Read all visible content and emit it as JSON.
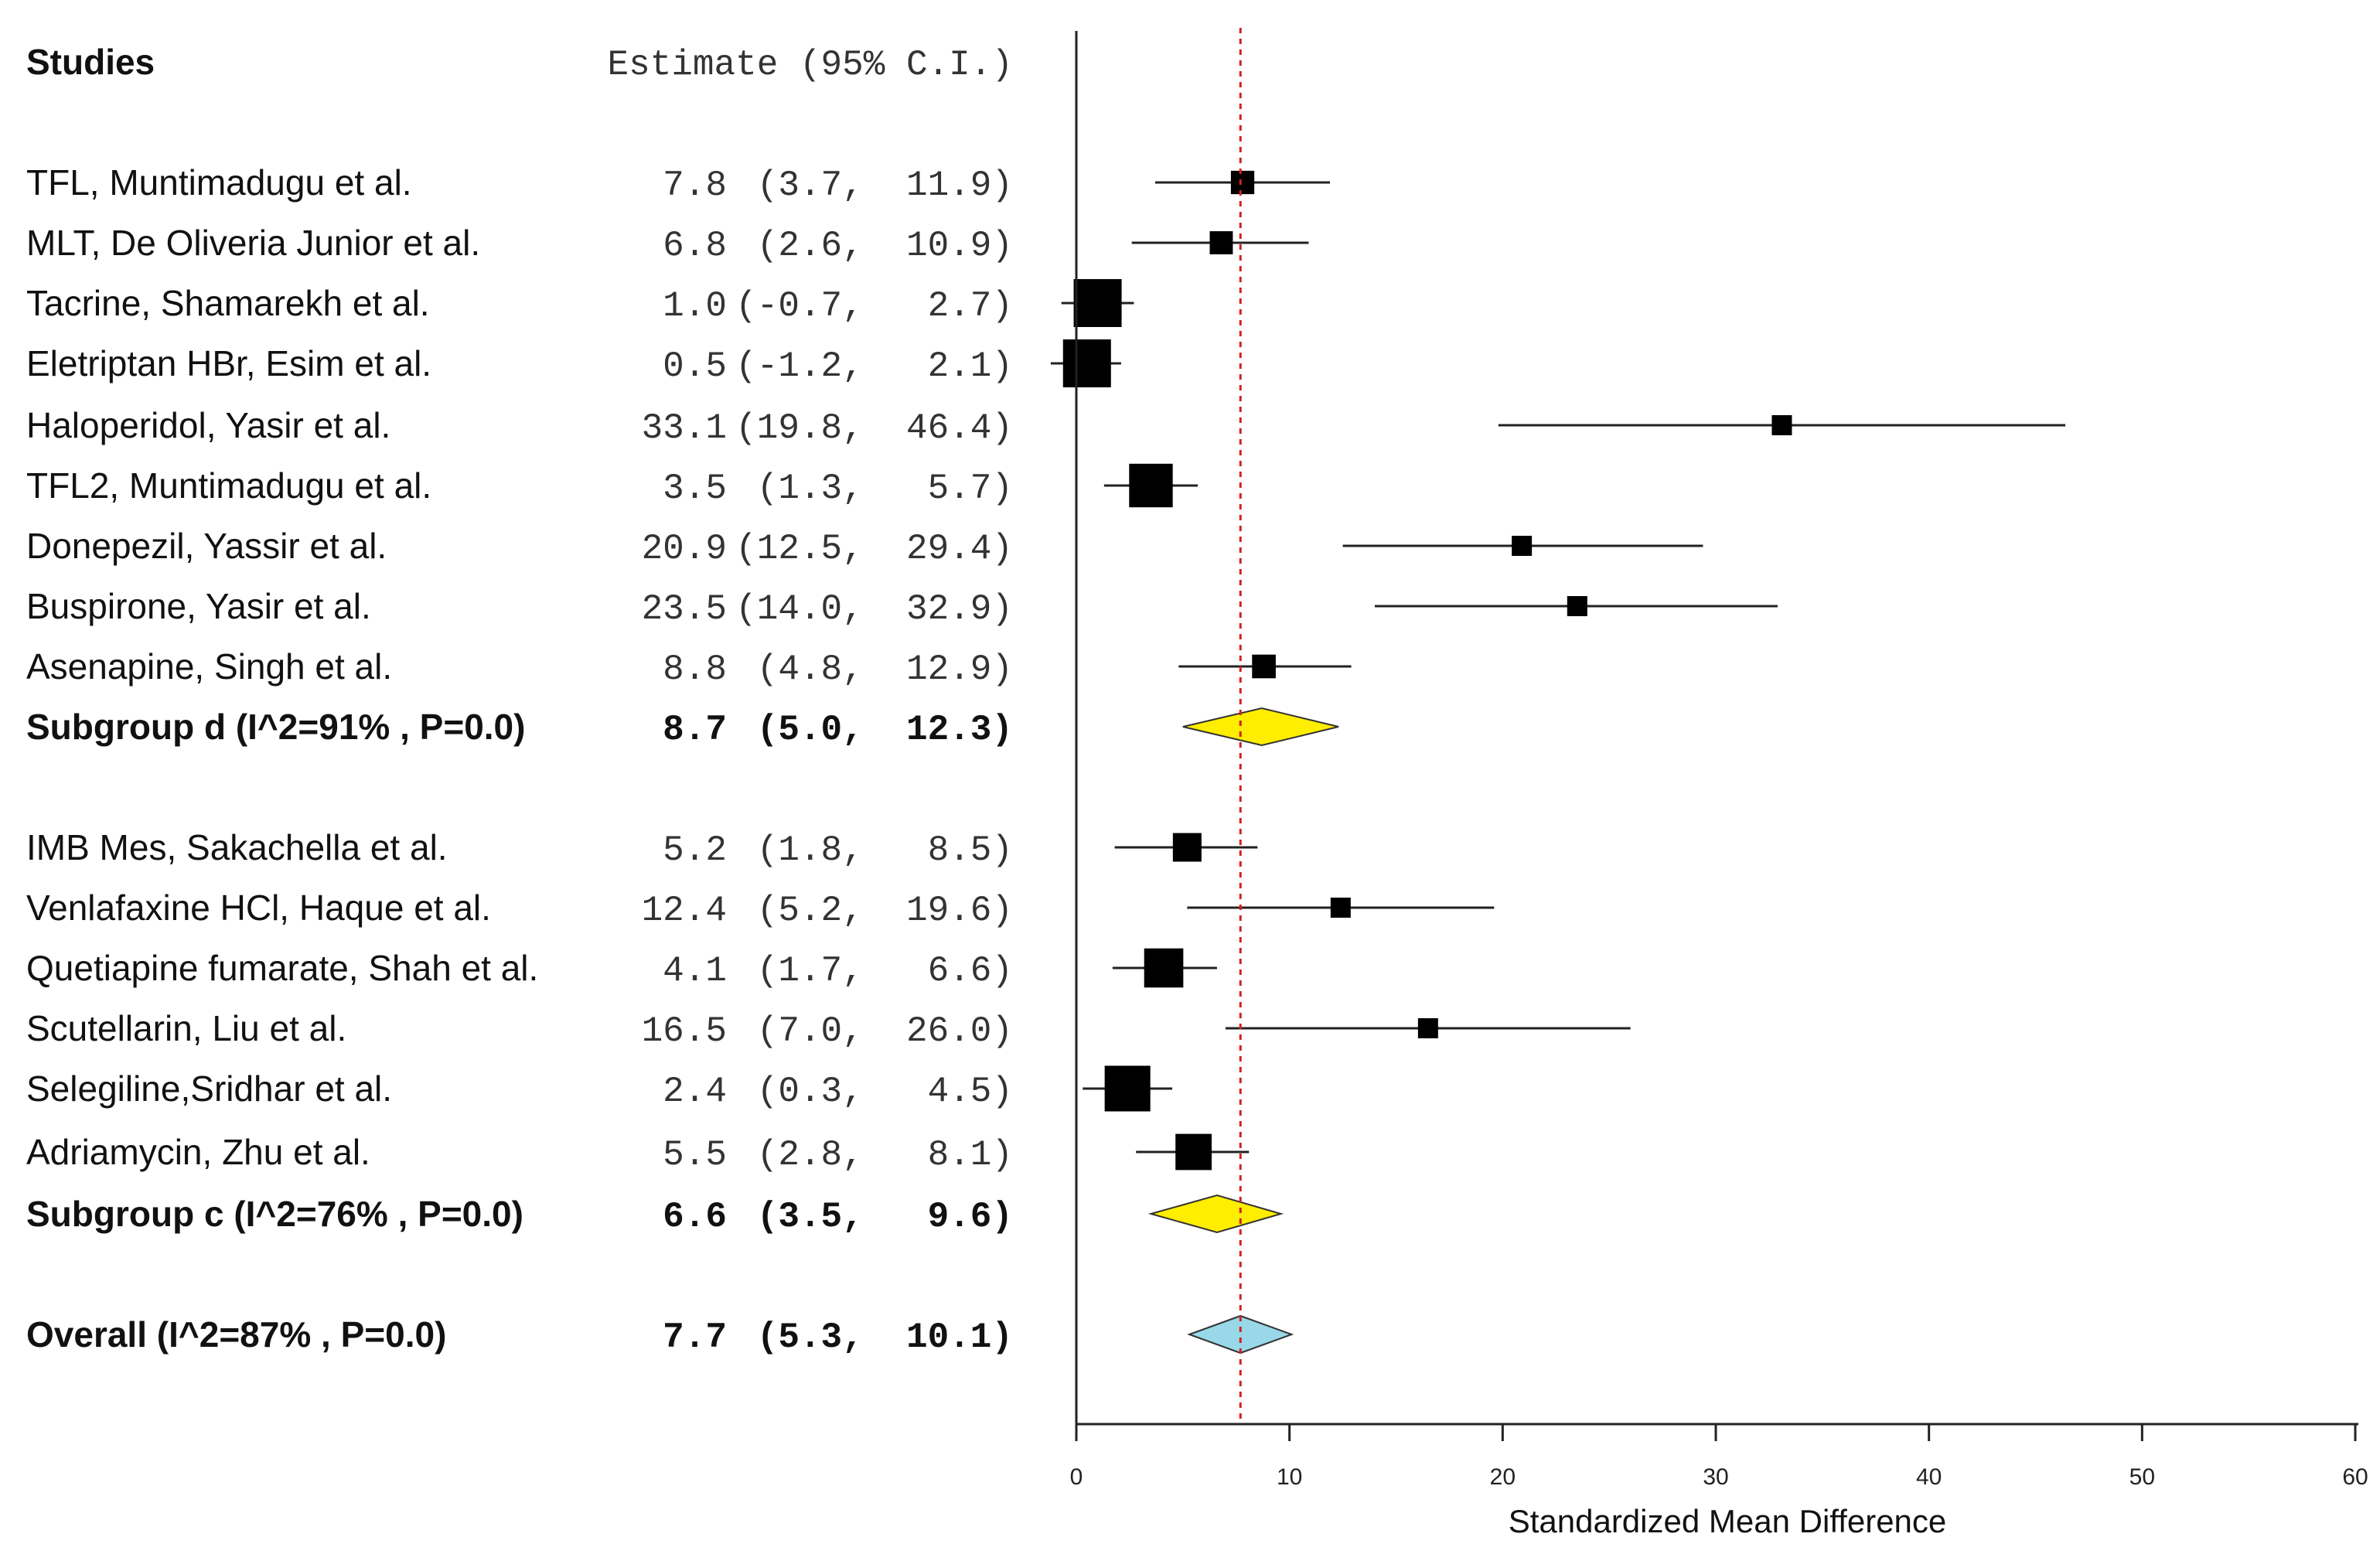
{
  "chart_data": {
    "type": "forest",
    "headers": {
      "studies": "Studies",
      "estimate": "Estimate (95% C.I.)"
    },
    "xlabel": "Standardized Mean Difference",
    "xlim": [
      0,
      60
    ],
    "xticks": [
      "0",
      "10",
      "20",
      "30",
      "40",
      "50",
      "60"
    ],
    "reference_line": 7.7,
    "reference_color": "#d62020",
    "rows": [
      {
        "kind": "study",
        "label": "TFL, Muntimadugu et al.",
        "est": 7.8,
        "lo": 3.7,
        "hi": 11.9,
        "est_text": "7.8",
        "ci_text": "(3.7,  11.9)"
      },
      {
        "kind": "study",
        "label": "MLT, De Oliveria Junior et al.",
        "est": 6.8,
        "lo": 2.6,
        "hi": 10.9,
        "est_text": "6.8",
        "ci_text": "(2.6,  10.9)"
      },
      {
        "kind": "study",
        "label": "Tacrine, Shamarekh et al.",
        "est": 1.0,
        "lo": -0.7,
        "hi": 2.7,
        "est_text": "1.0",
        "ci_text": "(-0.7,   2.7)"
      },
      {
        "kind": "study",
        "label": "Eletriptan HBr, Esim et al.",
        "est": 0.5,
        "lo": -1.2,
        "hi": 2.1,
        "est_text": "0.5",
        "ci_text": "(-1.2,   2.1)"
      },
      {
        "kind": "study",
        "label": "Haloperidol, Yasir et al.",
        "est": 33.1,
        "lo": 19.8,
        "hi": 46.4,
        "est_text": "33.1",
        "ci_text": "(19.8,  46.4)"
      },
      {
        "kind": "study",
        "label": "TFL2, Muntimadugu et al.",
        "est": 3.5,
        "lo": 1.3,
        "hi": 5.7,
        "est_text": "3.5",
        "ci_text": "(1.3,   5.7)"
      },
      {
        "kind": "study",
        "label": "Donepezil, Yassir et al.",
        "est": 20.9,
        "lo": 12.5,
        "hi": 29.4,
        "est_text": "20.9",
        "ci_text": "(12.5,  29.4)"
      },
      {
        "kind": "study",
        "label": "Buspirone,  Yasir et al.",
        "est": 23.5,
        "lo": 14.0,
        "hi": 32.9,
        "est_text": "23.5",
        "ci_text": "(14.0,  32.9)"
      },
      {
        "kind": "study",
        "label": "Asenapine, Singh et al.",
        "est": 8.8,
        "lo": 4.8,
        "hi": 12.9,
        "est_text": "8.8",
        "ci_text": "(4.8,  12.9)"
      },
      {
        "kind": "summary",
        "label": "Subgroup d (I^2=91% , P=0.0)",
        "est": 8.7,
        "lo": 5.0,
        "hi": 12.3,
        "est_text": "8.7",
        "ci_text": "(5.0,  12.3)",
        "color": "#ffee00"
      },
      {
        "kind": "study",
        "label": "IMB Mes, Sakachella et al.",
        "est": 5.2,
        "lo": 1.8,
        "hi": 8.5,
        "est_text": "5.2",
        "ci_text": "(1.8,   8.5)"
      },
      {
        "kind": "study",
        "label": "Venlafaxine HCl, Haque et al.",
        "est": 12.4,
        "lo": 5.2,
        "hi": 19.6,
        "est_text": "12.4",
        "ci_text": "(5.2,  19.6)"
      },
      {
        "kind": "study",
        "label": "Quetiapine fumarate, Shah et al.",
        "est": 4.1,
        "lo": 1.7,
        "hi": 6.6,
        "est_text": "4.1",
        "ci_text": "(1.7,   6.6)"
      },
      {
        "kind": "study",
        "label": "Scutellarin, Liu et al.",
        "est": 16.5,
        "lo": 7.0,
        "hi": 26.0,
        "est_text": "16.5",
        "ci_text": "(7.0,  26.0)"
      },
      {
        "kind": "study",
        "label": "Selegiline,Sridhar et al.",
        "est": 2.4,
        "lo": 0.3,
        "hi": 4.5,
        "est_text": "2.4",
        "ci_text": "(0.3,   4.5)"
      },
      {
        "kind": "study",
        "label": "Adriamycin, Zhu et al.",
        "est": 5.5,
        "lo": 2.8,
        "hi": 8.1,
        "est_text": "5.5",
        "ci_text": "(2.8,   8.1)"
      },
      {
        "kind": "summary",
        "label": "Subgroup c (I^2=76% , P=0.0)",
        "est": 6.6,
        "lo": 3.5,
        "hi": 9.6,
        "est_text": "6.6",
        "ci_text": "(3.5,   9.6)",
        "color": "#ffee00"
      },
      {
        "kind": "summary",
        "label": "Overall (I^2=87% , P=0.0)",
        "est": 7.7,
        "lo": 5.3,
        "hi": 10.1,
        "est_text": "7.7",
        "ci_text": "(5.3,  10.1)",
        "color": "#99d8e8"
      }
    ]
  }
}
